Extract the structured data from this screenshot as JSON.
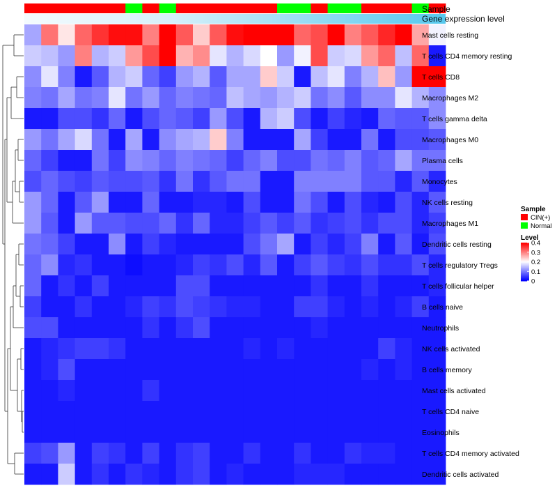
{
  "chart_data": {
    "type": "heatmap",
    "title": "",
    "xlabel": "",
    "ylabel": "",
    "annotation_labels": {
      "sample": "Sample",
      "gene_expression": "Gene expression level"
    },
    "sample_groups": [
      "CIN(+)",
      "CIN(+)",
      "CIN(+)",
      "CIN(+)",
      "CIN(+)",
      "CIN(+)",
      "Normal",
      "CIN(+)",
      "Normal",
      "CIN(+)",
      "CIN(+)",
      "CIN(+)",
      "CIN(+)",
      "CIN(+)",
      "CIN(+)",
      "Normal",
      "Normal",
      "CIN(+)",
      "Normal",
      "Normal",
      "CIN(+)",
      "CIN(+)",
      "CIN(+)",
      "Normal",
      "CIN(+)"
    ],
    "rows": [
      "Mast cells resting",
      "T cells CD4 memory resting",
      "T cells CD8",
      "Macrophages M2",
      "T cells gamma delta",
      "Macrophages M0",
      "Plasma cells",
      "Monocytes",
      "NK cells resting",
      "Macrophages M1",
      "Dendritic cells resting",
      "T cells regulatory  Tregs",
      "T cells follicular helper",
      "B cells naive",
      "Neutrophils",
      "NK cells activated",
      "B cells memory",
      "Mast cells activated",
      "T cells CD4 naive",
      "Eosinophils",
      "T cells CD4 memory activated",
      "Dendritic cells activated"
    ],
    "values": [
      [
        0.13,
        0.31,
        0.22,
        0.32,
        0.36,
        0.39,
        0.39,
        0.3,
        0.4,
        0.33,
        0.24,
        0.33,
        0.39,
        0.4,
        0.4,
        0.4,
        0.32,
        0.34,
        0.4,
        0.3,
        0.33,
        0.37,
        0.4,
        0.27,
        0.19
      ],
      [
        0.16,
        0.15,
        0.12,
        0.3,
        0.14,
        0.16,
        0.28,
        0.34,
        0.4,
        0.26,
        0.29,
        0.18,
        0.14,
        0.17,
        0.2,
        0.12,
        0.19,
        0.34,
        0.16,
        0.17,
        0.28,
        0.32,
        0.15,
        0.32,
        0.02
      ],
      [
        0.11,
        0.18,
        0.1,
        0.02,
        0.07,
        0.14,
        0.16,
        0.08,
        0.05,
        0.12,
        0.14,
        0.07,
        0.13,
        0.13,
        0.24,
        0.16,
        0.02,
        0.15,
        0.18,
        0.1,
        0.14,
        0.25,
        0.12,
        0.4,
        0.4
      ],
      [
        0.1,
        0.09,
        0.13,
        0.09,
        0.1,
        0.18,
        0.09,
        0.12,
        0.08,
        0.1,
        0.09,
        0.08,
        0.15,
        0.13,
        0.12,
        0.14,
        0.16,
        0.09,
        0.11,
        0.07,
        0.11,
        0.11,
        0.18,
        0.14,
        0.11
      ],
      [
        0.02,
        0.02,
        0.06,
        0.06,
        0.04,
        0.08,
        0.02,
        0.06,
        0.08,
        0.07,
        0.05,
        0.12,
        0.06,
        0.02,
        0.14,
        0.16,
        0.06,
        0.02,
        0.05,
        0.03,
        0.02,
        0.08,
        0.07,
        0.07,
        0.11
      ],
      [
        0.12,
        0.09,
        0.13,
        0.17,
        0.09,
        0.02,
        0.13,
        0.02,
        0.11,
        0.13,
        0.14,
        0.24,
        0.1,
        0.02,
        0.02,
        0.02,
        0.13,
        0.05,
        0.02,
        0.02,
        0.09,
        0.02,
        0.06,
        0.06,
        0.07
      ],
      [
        0.08,
        0.05,
        0.02,
        0.02,
        0.09,
        0.05,
        0.11,
        0.1,
        0.08,
        0.1,
        0.09,
        0.08,
        0.05,
        0.08,
        0.1,
        0.06,
        0.06,
        0.09,
        0.08,
        0.1,
        0.07,
        0.08,
        0.13,
        0.09,
        0.09
      ],
      [
        0.06,
        0.08,
        0.06,
        0.05,
        0.07,
        0.06,
        0.06,
        0.07,
        0.04,
        0.09,
        0.04,
        0.07,
        0.09,
        0.09,
        0.02,
        0.02,
        0.1,
        0.1,
        0.1,
        0.1,
        0.07,
        0.07,
        0.03,
        0.07,
        0.03
      ],
      [
        0.12,
        0.08,
        0.02,
        0.07,
        0.12,
        0.02,
        0.02,
        0.08,
        0.02,
        0.02,
        0.03,
        0.03,
        0.02,
        0.06,
        0.02,
        0.02,
        0.09,
        0.06,
        0.02,
        0.06,
        0.03,
        0.02,
        0.06,
        0.03,
        0.07
      ],
      [
        0.12,
        0.07,
        0.02,
        0.12,
        0.07,
        0.07,
        0.06,
        0.06,
        0.08,
        0.04,
        0.08,
        0.03,
        0.03,
        0.05,
        0.07,
        0.05,
        0.07,
        0.04,
        0.05,
        0.06,
        0.04,
        0.06,
        0.06,
        0.03,
        0.05
      ],
      [
        0.09,
        0.08,
        0.05,
        0.02,
        0.02,
        0.11,
        0.02,
        0.05,
        0.03,
        0.02,
        0.02,
        0.02,
        0.02,
        0.06,
        0.09,
        0.13,
        0.02,
        0.05,
        0.03,
        0.05,
        0.1,
        0.02,
        0.07,
        0.02,
        0.06
      ],
      [
        0.08,
        0.11,
        0.03,
        0.04,
        0.02,
        0.02,
        0.01,
        0.02,
        0.02,
        0.03,
        0.05,
        0.04,
        0.06,
        0.03,
        0.07,
        0.02,
        0.05,
        0.07,
        0.05,
        0.04,
        0.06,
        0.04,
        0.04,
        0.06,
        0.03
      ],
      [
        0.08,
        0.02,
        0.04,
        0.02,
        0.05,
        0.02,
        0.02,
        0.02,
        0.02,
        0.06,
        0.06,
        0.02,
        0.02,
        0.02,
        0.02,
        0.02,
        0.02,
        0.04,
        0.02,
        0.02,
        0.04,
        0.02,
        0.02,
        0.02,
        0.03
      ],
      [
        0.05,
        0.02,
        0.02,
        0.04,
        0.02,
        0.02,
        0.03,
        0.05,
        0.04,
        0.06,
        0.05,
        0.04,
        0.03,
        0.03,
        0.02,
        0.02,
        0.05,
        0.05,
        0.03,
        0.02,
        0.03,
        0.02,
        0.03,
        0.05,
        0.02
      ],
      [
        0.06,
        0.06,
        0.02,
        0.02,
        0.02,
        0.02,
        0.02,
        0.04,
        0.02,
        0.04,
        0.06,
        0.02,
        0.02,
        0.02,
        0.02,
        0.02,
        0.02,
        0.03,
        0.02,
        0.02,
        0.02,
        0.02,
        0.02,
        0.02,
        0.02
      ],
      [
        0.02,
        0.03,
        0.04,
        0.05,
        0.05,
        0.04,
        0.02,
        0.02,
        0.02,
        0.02,
        0.02,
        0.02,
        0.02,
        0.03,
        0.02,
        0.03,
        0.02,
        0.02,
        0.02,
        0.02,
        0.02,
        0.05,
        0.03,
        0.02,
        0.02
      ],
      [
        0.02,
        0.03,
        0.06,
        0.02,
        0.02,
        0.02,
        0.02,
        0.02,
        0.02,
        0.02,
        0.02,
        0.02,
        0.02,
        0.02,
        0.02,
        0.02,
        0.02,
        0.02,
        0.02,
        0.02,
        0.03,
        0.02,
        0.03,
        0.02,
        0.02
      ],
      [
        0.02,
        0.02,
        0.03,
        0.02,
        0.02,
        0.02,
        0.02,
        0.04,
        0.02,
        0.02,
        0.02,
        0.02,
        0.02,
        0.02,
        0.02,
        0.02,
        0.02,
        0.02,
        0.02,
        0.02,
        0.02,
        0.02,
        0.02,
        0.02,
        0.02
      ],
      [
        0.02,
        0.02,
        0.02,
        0.02,
        0.02,
        0.02,
        0.02,
        0.02,
        0.02,
        0.02,
        0.02,
        0.02,
        0.02,
        0.02,
        0.02,
        0.02,
        0.02,
        0.02,
        0.02,
        0.02,
        0.02,
        0.02,
        0.02,
        0.02,
        0.02
      ],
      [
        0.02,
        0.02,
        0.02,
        0.02,
        0.02,
        0.02,
        0.02,
        0.02,
        0.02,
        0.02,
        0.02,
        0.02,
        0.02,
        0.02,
        0.02,
        0.02,
        0.02,
        0.02,
        0.02,
        0.02,
        0.02,
        0.02,
        0.02,
        0.02,
        0.02
      ],
      [
        0.05,
        0.06,
        0.12,
        0.02,
        0.05,
        0.04,
        0.02,
        0.05,
        0.02,
        0.04,
        0.05,
        0.02,
        0.02,
        0.04,
        0.02,
        0.02,
        0.04,
        0.02,
        0.02,
        0.04,
        0.03,
        0.03,
        0.02,
        0.02,
        0.02
      ],
      [
        0.02,
        0.02,
        0.16,
        0.02,
        0.04,
        0.02,
        0.04,
        0.03,
        0.02,
        0.04,
        0.05,
        0.02,
        0.03,
        0.02,
        0.02,
        0.02,
        0.03,
        0.03,
        0.03,
        0.02,
        0.02,
        0.02,
        0.02,
        0.02,
        0.02
      ]
    ],
    "color_scale": {
      "min": 0,
      "mid": 0.2,
      "max": 0.4,
      "low_color": "#0000FF",
      "mid_color": "#FFFFFF",
      "high_color": "#FF0000"
    },
    "group_colors": {
      "CIN(+)": "#FF0000",
      "Normal": "#00FF00"
    },
    "gene_expression_color": "#56C8EE",
    "legend": {
      "sample_title": "Sample",
      "level_title": "Level",
      "level_ticks": [
        "0.4",
        "0.3",
        "0.2",
        "0.1",
        "0"
      ]
    },
    "dendrogram": "row clustering tree on left"
  }
}
